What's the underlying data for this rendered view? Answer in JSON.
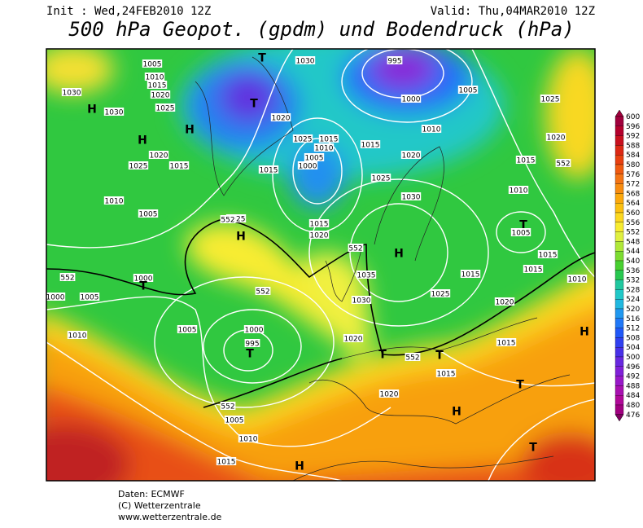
{
  "header": {
    "init": "Init : Wed,24FEB2010 12Z",
    "valid": "Valid: Thu,04MAR2010 12Z",
    "title": "500 hPa Geopot. (gpdm) und Bodendruck (hPa)"
  },
  "colorbar": {
    "levels": [
      600,
      596,
      592,
      588,
      584,
      580,
      576,
      572,
      568,
      564,
      560,
      556,
      552,
      548,
      544,
      540,
      536,
      532,
      528,
      524,
      520,
      516,
      512,
      508,
      504,
      500,
      496,
      492,
      488,
      484,
      480,
      476
    ],
    "colors": [
      "#a0003c",
      "#b4002c",
      "#c8101e",
      "#dc2814",
      "#e84010",
      "#f05a10",
      "#f47414",
      "#f88c10",
      "#fca80c",
      "#fcc010",
      "#fcd820",
      "#f8ec30",
      "#e0f040",
      "#b0e838",
      "#7cdc30",
      "#48d030",
      "#28c850",
      "#20c8a0",
      "#20c8c8",
      "#20b8e0",
      "#2098f0",
      "#2078f8",
      "#2058f8",
      "#3040f0",
      "#4830e8",
      "#6828e0",
      "#8020d8",
      "#9818c8",
      "#a810b0",
      "#b00898",
      "#a00080",
      "#800060"
    ]
  },
  "map_labels": [
    "1005",
    "1030",
    "1010",
    "1015",
    "1020",
    "1025",
    "1030",
    "1030",
    "H",
    "H",
    "H",
    "T",
    "T",
    "995",
    "1000",
    "1005",
    "1010",
    "1015",
    "1020",
    "1025",
    "1020",
    "1015",
    "1025",
    "1020",
    "1025",
    "1015",
    "1010",
    "1005",
    "1000",
    "1015",
    "1010",
    "1005",
    "1015",
    "1020",
    "1025",
    "H",
    "1030",
    "T",
    "1005",
    "1025",
    "1020",
    "1015",
    "1010",
    "1015",
    "1015",
    "1010",
    "H",
    "1035",
    "1030",
    "1025",
    "1020",
    "1015",
    "1000",
    "T",
    "1005",
    "1000",
    "1010",
    "1005",
    "1000",
    "995",
    "T",
    "1020",
    "1015",
    "H",
    "T",
    "T",
    "1015",
    "T",
    "1020",
    "H",
    "1005",
    "1010",
    "1015",
    "H",
    "T",
    "552",
    "552",
    "552",
    "552",
    "552",
    "552",
    "552"
  ],
  "footer": [
    "Daten: ECMWF",
    "(C) Wetterzentrale",
    "www.wetterzentrale.de"
  ]
}
